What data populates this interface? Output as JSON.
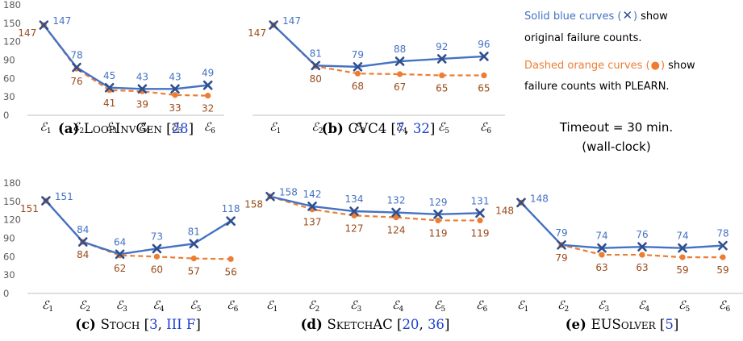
{
  "colors": {
    "blue": "#4472c4",
    "orange": "#ed7d31",
    "blueMark": "#2f4f8f",
    "axis": "#bfbfbf",
    "text": "#000000",
    "link": "#1f3fd1",
    "tick": "#595959"
  },
  "legend": {
    "blue_line1": "Solid blue curves (",
    "blue_mark": "✕",
    "blue_line1_end": ") show",
    "blue_line2": "original failure counts.",
    "orange_line1": "Dashed orange curves (",
    "orange_mark": "●",
    "orange_line1_end": ") show",
    "orange_line2": "failure counts with PLEARN."
  },
  "timeout": {
    "line1": "Timeout = 30 min.",
    "line2": "(wall-clock)"
  },
  "x_tick_labels": [
    "ℰ1",
    "ℰ2",
    "ℰ3",
    "ℰ4",
    "ℰ5",
    "ℰ6"
  ],
  "chart_data": [
    {
      "type": "line",
      "caption_tag": "(a)",
      "caption_name": "LoopInvGen",
      "caption_refs": [
        "28"
      ],
      "categories": [
        "ℰ1",
        "ℰ2",
        "ℰ3",
        "ℰ4",
        "ℰ5",
        "ℰ6"
      ],
      "ylim": [
        0,
        180
      ],
      "yticks": [
        0,
        30,
        60,
        90,
        120,
        150,
        180
      ],
      "series": [
        {
          "values": [
            147,
            78,
            45,
            43,
            43,
            49
          ]
        },
        {
          "values": [
            147,
            76,
            41,
            39,
            33,
            32
          ]
        }
      ]
    },
    {
      "type": "line",
      "caption_tag": "(b)",
      "caption_name": "CVC4",
      "caption_refs": [
        "7",
        "32"
      ],
      "categories": [
        "ℰ1",
        "ℰ2",
        "ℰ3",
        "ℰ4",
        "ℰ5",
        "ℰ6"
      ],
      "ylim": [
        0,
        180
      ],
      "series": [
        {
          "values": [
            147,
            81,
            79,
            88,
            92,
            96
          ]
        },
        {
          "values": [
            147,
            80,
            68,
            67,
            65,
            65
          ]
        }
      ]
    },
    {
      "type": "line",
      "caption_tag": "(c)",
      "caption_name": "Stoch",
      "caption_refs": [
        "3",
        "III F"
      ],
      "categories": [
        "ℰ1",
        "ℰ2",
        "ℰ3",
        "ℰ4",
        "ℰ5",
        "ℰ6"
      ],
      "ylim": [
        0,
        180
      ],
      "yticks": [
        0,
        30,
        60,
        90,
        120,
        150,
        180
      ],
      "series": [
        {
          "values": [
            151,
            84,
            64,
            73,
            81,
            118
          ]
        },
        {
          "values": [
            151,
            84,
            62,
            60,
            57,
            56
          ]
        }
      ]
    },
    {
      "type": "line",
      "caption_tag": "(d)",
      "caption_name": "SketchAC",
      "caption_refs": [
        "20",
        "36"
      ],
      "categories": [
        "ℰ1",
        "ℰ2",
        "ℰ3",
        "ℰ4",
        "ℰ5",
        "ℰ6"
      ],
      "ylim": [
        0,
        180
      ],
      "series": [
        {
          "values": [
            158,
            142,
            134,
            132,
            129,
            131
          ]
        },
        {
          "values": [
            158,
            137,
            127,
            124,
            119,
            119
          ]
        }
      ]
    },
    {
      "type": "line",
      "caption_tag": "(e)",
      "caption_name": "EUSolver",
      "caption_refs": [
        "5"
      ],
      "categories": [
        "ℰ1",
        "ℰ2",
        "ℰ3",
        "ℰ4",
        "ℰ5",
        "ℰ6"
      ],
      "ylim": [
        0,
        180
      ],
      "series": [
        {
          "values": [
            148,
            79,
            74,
            76,
            74,
            78
          ]
        },
        {
          "values": [
            148,
            79,
            63,
            63,
            59,
            59
          ]
        }
      ]
    }
  ]
}
